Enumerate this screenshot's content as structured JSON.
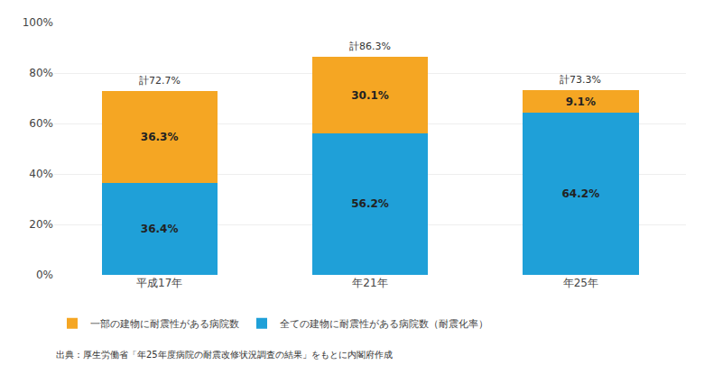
{
  "chart_data": {
    "type": "bar",
    "stacked": true,
    "categories": [
      "平成17年",
      "年21年",
      "年25年"
    ],
    "series": [
      {
        "name": "全ての建物に耐震性がある病院数（耐震化率）",
        "color": "#1FA0D8",
        "values": [
          36.4,
          56.2,
          64.2
        ],
        "value_labels": [
          "36.4%",
          "56.2%",
          "64.2%"
        ]
      },
      {
        "name": "一部の建物に耐震性がある病院数",
        "color": "#F5A623",
        "values": [
          36.3,
          30.1,
          9.1
        ],
        "value_labels": [
          "36.3%",
          "30.1%",
          "9.1%"
        ]
      }
    ],
    "data_labels": true,
    "annotations": [
      {
        "text": "計72.7%",
        "x": "平成17年",
        "y": 72.7
      },
      {
        "text": "計86.3%",
        "x": "年21年",
        "y": 86.3
      },
      {
        "text": "計73.3%",
        "x": "年25年",
        "y": 73.3
      }
    ],
    "source": "出典：厚生労働省「年25年度病院の耐震改修状況調査の結果」をもとに内閣府作成",
    "ylim": [
      0,
      100
    ],
    "yticks": [
      {
        "value": 0,
        "label": "0%"
      },
      {
        "value": 20,
        "label": "20%"
      },
      {
        "value": 40,
        "label": "40%"
      },
      {
        "value": 60,
        "label": "60%"
      },
      {
        "value": 80,
        "label": "80%"
      },
      {
        "value": 100,
        "label": "100%"
      }
    ],
    "grid": true,
    "legend": "bottom"
  }
}
